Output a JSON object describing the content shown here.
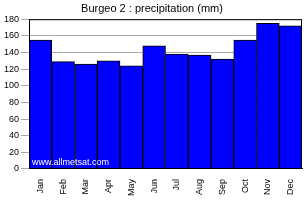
{
  "chart_data": {
    "type": "bar",
    "title": "Burgeo 2 : precipitation (mm)",
    "categories": [
      "Jan",
      "Feb",
      "Mar",
      "Apr",
      "May",
      "Jun",
      "Jul",
      "Aug",
      "Sep",
      "Oct",
      "Nov",
      "Dec"
    ],
    "values": [
      155,
      129,
      126,
      130,
      124,
      148,
      138,
      137,
      132,
      155,
      175,
      172
    ],
    "color": "#0000ff",
    "ylim": [
      0,
      180
    ],
    "yticks": [
      0,
      20,
      40,
      60,
      80,
      100,
      120,
      140,
      160,
      180
    ],
    "grid": true,
    "annotations": [
      "www.allmetsat.com"
    ]
  }
}
